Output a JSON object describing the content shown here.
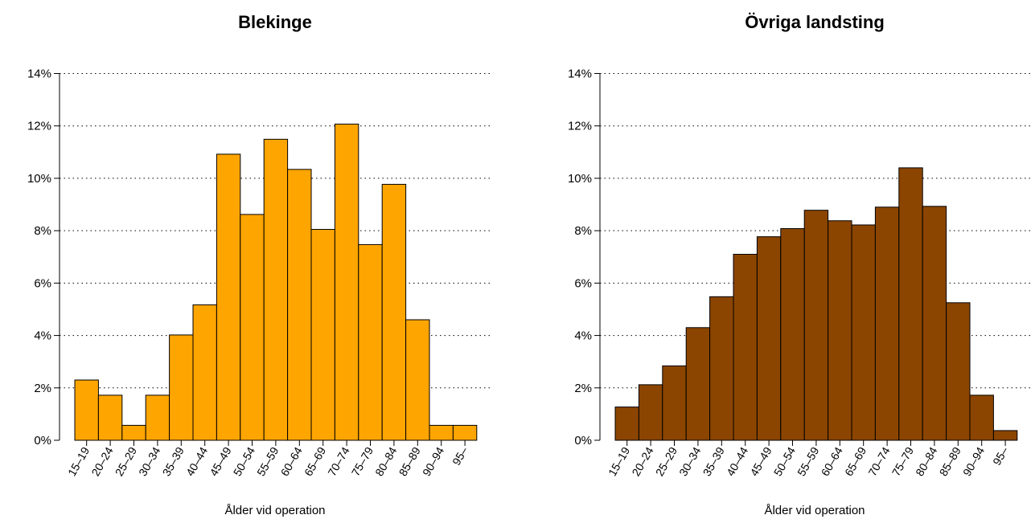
{
  "chart_data": [
    {
      "type": "bar",
      "title": "Blekinge",
      "xlabel": "Ålder vid operation",
      "ylabel": "",
      "ylim": [
        0,
        14
      ],
      "yticks": [
        0,
        2,
        4,
        6,
        8,
        10,
        12,
        14
      ],
      "ytick_labels": [
        "0%",
        "2%",
        "4%",
        "6%",
        "8%",
        "10%",
        "12%",
        "14%"
      ],
      "grid": true,
      "color": "#FFA500",
      "categories": [
        "15–19",
        "20–24",
        "25–29",
        "30–34",
        "35–39",
        "40–44",
        "45–49",
        "50–54",
        "55–59",
        "60–64",
        "65–69",
        "70–74",
        "75–79",
        "80–84",
        "85–89",
        "90–94",
        "95–"
      ],
      "values": [
        2.3,
        1.72,
        0.57,
        1.72,
        4.02,
        5.17,
        10.92,
        8.62,
        11.49,
        10.34,
        8.05,
        12.07,
        7.47,
        9.77,
        4.6,
        0.57,
        0.57
      ]
    },
    {
      "type": "bar",
      "title": "Övriga landsting",
      "xlabel": "Ålder vid operation",
      "ylabel": "",
      "ylim": [
        0,
        14
      ],
      "yticks": [
        0,
        2,
        4,
        6,
        8,
        10,
        12,
        14
      ],
      "ytick_labels": [
        "0%",
        "2%",
        "4%",
        "6%",
        "8%",
        "10%",
        "12%",
        "14%"
      ],
      "grid": true,
      "color": "#8B4500",
      "categories": [
        "15–19",
        "20–24",
        "25–29",
        "30–34",
        "35–39",
        "40–44",
        "45–49",
        "50–54",
        "55–59",
        "60–64",
        "65–69",
        "70–74",
        "75–79",
        "80–84",
        "85–89",
        "90–94",
        "95–"
      ],
      "values": [
        1.27,
        2.12,
        2.84,
        4.3,
        5.48,
        7.1,
        7.77,
        8.08,
        8.78,
        8.38,
        8.22,
        8.9,
        10.4,
        8.93,
        5.25,
        1.72,
        0.37
      ]
    }
  ]
}
